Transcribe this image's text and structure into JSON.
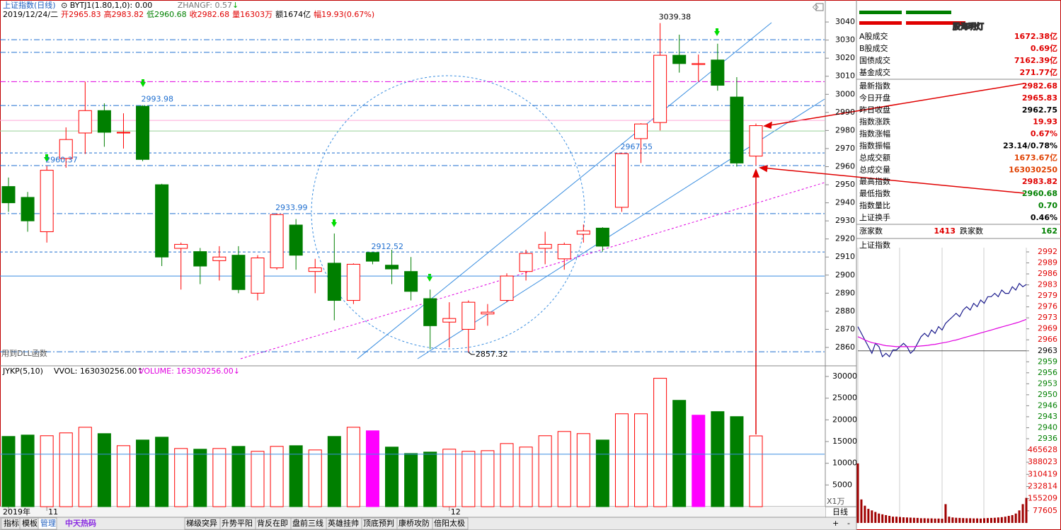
{
  "header": {
    "title": "上证指数",
    "period": "(日线)",
    "indicator": "⊙ BYTJ1(1.80,1,0)",
    "indicator_value": ": 0.00",
    "zhangf": "ZHANGF: 0.57",
    "zhangf_arrow": "↓",
    "info": [
      {
        "text": "2019/12/24/二",
        "color": "#000000"
      },
      {
        "text": "开2965.83",
        "color": "#e00000"
      },
      {
        "text": "高2983.82",
        "color": "#e00000"
      },
      {
        "text": "低2960.68",
        "color": "#008000"
      },
      {
        "text": "收2982.68",
        "color": "#e00000"
      },
      {
        "text": "量16303万",
        "color": "#e00000"
      },
      {
        "text": "额1674亿",
        "color": "#000000"
      },
      {
        "text": "幅19.93(0.67%)",
        "color": "#e00000"
      }
    ]
  },
  "chart_data": [
    {
      "type": "candlestick",
      "note": "用到DLL函数",
      "categories": [
        "2019年",
        null,
        "11",
        null,
        null,
        null,
        null,
        null,
        null,
        null,
        null,
        null,
        null,
        null,
        null,
        null,
        null,
        null,
        null,
        null,
        null,
        null,
        null,
        "12",
        null,
        null,
        null,
        null,
        null,
        null,
        null,
        null,
        null,
        null,
        null,
        null,
        null,
        null,
        null,
        null
      ],
      "open": [
        2949,
        2943,
        2924,
        2964.5,
        2978.6,
        2991,
        2978.6,
        2993.4,
        2950,
        2914.8,
        2913,
        2908,
        2911,
        2890,
        2904,
        2927.7,
        2902,
        2906.6,
        2886,
        2912.5,
        2905.5,
        2902,
        2887,
        2874,
        2870,
        2878.5,
        2886,
        2902,
        2914.8,
        2909,
        2922.6,
        2926,
        2937.5,
        2975.5,
        2984.4,
        3021.6,
        3016.5,
        3019,
        2998.5,
        2965.83
      ],
      "high": [
        2954,
        2946,
        2960.37,
        2981.7,
        3007,
        2995,
        2989.5,
        2993.98,
        2950.5,
        2918,
        2915,
        2916,
        2916,
        2911,
        2933.99,
        2931,
        2909,
        2923,
        2906.5,
        2912.52,
        2914,
        2910,
        2892,
        2885,
        2886,
        2884,
        2901,
        2914,
        2924,
        2918,
        2928,
        2926.5,
        2967.55,
        2984,
        3039.38,
        3033,
        3022,
        3028,
        3009.5,
        2983.82
      ],
      "low": [
        2935,
        2924,
        2918,
        2959.4,
        2967,
        2971,
        2970,
        2963,
        2905,
        2892,
        2895,
        2897,
        2890,
        2886,
        2903,
        2903,
        2890,
        2875,
        2884,
        2906,
        2895,
        2886,
        2859,
        2860,
        2857.32,
        2872,
        2885,
        2897,
        2906,
        2903,
        2918,
        2913,
        2935,
        2962,
        2980,
        3012,
        3007,
        3002,
        2960,
        2960.68
      ],
      "close": [
        2940,
        2930,
        2958,
        2975,
        2991,
        2979,
        2979,
        2964,
        2910,
        2917,
        2905,
        2910,
        2892,
        2909.5,
        2933.5,
        2911,
        2904,
        2886,
        2906,
        2907.7,
        2903.4,
        2891,
        2872,
        2876,
        2885,
        2879.5,
        2899.5,
        2912,
        2917,
        2917,
        2924.5,
        2916,
        2967.2,
        2983.6,
        3021.6,
        3017,
        3017,
        3005,
        2962,
        2982.68
      ],
      "up_color": "#ff0000",
      "down_color": "#007f00",
      "ylim": [
        2850.6,
        3046.3
      ],
      "yticks": [
        2860,
        2870,
        2880,
        2890,
        2900,
        2910,
        2920,
        2930,
        2940,
        2950,
        2960,
        2970,
        2980,
        2990,
        3000,
        3010,
        3020,
        3030,
        3040
      ],
      "annotations": [
        {
          "label": "3039.38",
          "value": 3039.38,
          "color": "#000000"
        },
        {
          "label": "2993.98",
          "value": 2993.98,
          "color": "#1f6fd0"
        },
        {
          "label": "2960.37",
          "value": 2960.37,
          "color": "#1f6fd0"
        },
        {
          "label": "2933.99",
          "value": 2933.99,
          "color": "#1f6fd0"
        },
        {
          "label": "2912.52",
          "value": 2912.52,
          "color": "#1f6fd0"
        },
        {
          "label": "2967.55",
          "value": 2967.55,
          "color": "#1f6fd0"
        },
        {
          "label": "2857.32",
          "value": 2857.32,
          "color": "#000000"
        }
      ],
      "reference_lines": [
        {
          "value": 3030.2,
          "color": "#1f6fd0",
          "style": "dashdot"
        },
        {
          "value": 3023.2,
          "color": "#1f6fd0",
          "style": "dashdot"
        },
        {
          "value": 3007,
          "color": "#e000e0",
          "style": "dashdot"
        },
        {
          "value": 2993.8,
          "color": "#1f6fd0",
          "style": "dashdot"
        },
        {
          "value": 2985.6,
          "color": "#ffa8d8",
          "style": "solid"
        },
        {
          "value": 2979.7,
          "color": "#98d098",
          "style": "solid"
        },
        {
          "value": 2967.6,
          "color": "#1f6fd0",
          "style": "dash"
        },
        {
          "value": 2960.6,
          "color": "#1f6fd0",
          "style": "dashdot"
        },
        {
          "value": 2934,
          "color": "#1f6fd0",
          "style": "dashdot"
        },
        {
          "value": 2912.8,
          "color": "#1f6fd0",
          "style": "dash"
        },
        {
          "value": 2899.5,
          "color": "#3a8ee0",
          "style": "solid"
        },
        {
          "value": 2857.6,
          "color": "#1f6fd0",
          "style": "dashdot"
        }
      ]
    },
    {
      "type": "bar",
      "title": "JYKP(5,10)",
      "legend": [
        {
          "text": "VVOL: 163030256.00↑",
          "color": "#000000"
        },
        {
          "text": "VOLUME: 163030256.00↓",
          "color": "#e000e0"
        }
      ],
      "values": [
        16180,
        16500,
        16340,
        17000,
        18300,
        16830,
        14050,
        15360,
        16010,
        13400,
        13240,
        13400,
        13890,
        12750,
        13890,
        14050,
        13070,
        16180,
        18300,
        17480,
        13730,
        12250,
        12580,
        13240,
        12750,
        12900,
        14540,
        13730,
        16340,
        17320,
        16830,
        15360,
        21400,
        21400,
        29580,
        24500,
        21080,
        21900,
        20750,
        16303
      ],
      "colors": [
        "#007f00",
        "#007f00",
        "#ff0000",
        "#ff0000",
        "#ff0000",
        "#007f00",
        "#ff0000",
        "#007f00",
        "#007f00",
        "#ff0000",
        "#007f00",
        "#ff0000",
        "#007f00",
        "#ff0000",
        "#ff0000",
        "#007f00",
        "#ff0000",
        "#007f00",
        "#ff0000",
        "#ff00ff",
        "#007f00",
        "#007f00",
        "#007f00",
        "#ff0000",
        "#ff0000",
        "#ff0000",
        "#ff0000",
        "#ff0000",
        "#ff0000",
        "#ff0000",
        "#ff0000",
        "#007f00",
        "#ff0000",
        "#ff0000",
        "#ff0000",
        "#007f00",
        "#ff00ff",
        "#007f00",
        "#007f00",
        "#ff0000"
      ],
      "hollow_color": "#ff0000",
      "reference_value": 12090,
      "reference_color": "#3a8ee0",
      "ylim": [
        0,
        31960
      ],
      "yticks": [
        5000,
        10000,
        15000,
        20000,
        25000,
        30000
      ],
      "unit": "X1万"
    },
    {
      "type": "line",
      "title": "上证指数",
      "baseline": 2962.75,
      "series": [
        {
          "color": "#1a1a8c",
          "values": [
            2970,
            2968,
            2966,
            2964,
            2962,
            2965,
            2964,
            2961,
            2962,
            2961,
            2963,
            2963,
            2964,
            2965,
            2964,
            2962,
            2963,
            2965,
            2967,
            2968,
            2967,
            2969,
            2968,
            2970,
            2969,
            2971,
            2972,
            2973,
            2974,
            2973,
            2975,
            2976,
            2975,
            2977,
            2976,
            2978,
            2977,
            2979,
            2979,
            2980,
            2979,
            2981,
            2980,
            2980,
            2982,
            2981,
            2983,
            2982,
            2982.68
          ]
        },
        {
          "color": "#e000e0",
          "values": [
            2967,
            2966.5,
            2966,
            2965.6,
            2965.2,
            2965,
            2964.8,
            2964.5,
            2964.3,
            2964.2,
            2964.1,
            2964,
            2964,
            2964,
            2964,
            2964,
            2964,
            2964.1,
            2964.2,
            2964.3,
            2964.4,
            2964.6,
            2964.7,
            2964.9,
            2965.1,
            2965.3,
            2965.5,
            2965.8,
            2966,
            2966.3,
            2966.6,
            2966.9,
            2967.2,
            2967.5,
            2967.8,
            2968.1,
            2968.4,
            2968.7,
            2969,
            2969.3,
            2969.6,
            2969.9,
            2970.2,
            2970.5,
            2970.8,
            2971.1,
            2971.4,
            2971.8,
            2972.2
          ]
        }
      ],
      "ylim": [
        2934.65,
        2994.15
      ],
      "yticks": [
        {
          "value": 2992.45,
          "label": "2992"
        },
        {
          "value": 2989.15,
          "label": "2989"
        },
        {
          "value": 2985.85,
          "label": "2986"
        },
        {
          "value": 2982.55,
          "label": "2983"
        },
        {
          "value": 2979.25,
          "label": "2979"
        },
        {
          "value": 2975.95,
          "label": "2976"
        },
        {
          "value": 2972.65,
          "label": "2973"
        },
        {
          "value": 2969.35,
          "label": "2969"
        },
        {
          "value": 2966.05,
          "label": "2966"
        },
        {
          "value": 2962.75,
          "label": "2963"
        },
        {
          "value": 2959.45,
          "label": "2959"
        },
        {
          "value": 2956.15,
          "label": "2956"
        },
        {
          "value": 2952.85,
          "label": "2953"
        },
        {
          "value": 2949.55,
          "label": "2950"
        },
        {
          "value": 2946.25,
          "label": "2946"
        },
        {
          "value": 2942.95,
          "label": "2943"
        },
        {
          "value": 2939.65,
          "label": "2940"
        },
        {
          "value": 2936.35,
          "label": "2936"
        }
      ],
      "volume": {
        "color": "#a00000",
        "values": [
          380000,
          150000,
          110000,
          90000,
          80000,
          70000,
          60000,
          55000,
          50000,
          45000,
          40000,
          40000,
          38000,
          36000,
          35000,
          34000,
          33000,
          32000,
          30000,
          30000,
          29000,
          29000,
          28000,
          28000,
          27000,
          120000,
          40000,
          35000,
          33000,
          32000,
          31000,
          30000,
          30000,
          29000,
          29000,
          28000,
          30000,
          31000,
          32000,
          33000,
          35000,
          37000,
          40000,
          45000,
          50000,
          60000,
          80000,
          120000,
          160000
        ],
        "ylim": [
          0,
          492750
        ],
        "yticks": [
          465628,
          388023,
          310419,
          232814,
          155209,
          77605
        ]
      }
    }
  ],
  "panel": {
    "watermark": "股海明灯",
    "rows": [
      {
        "label": "A股成交",
        "value": "1672.38亿",
        "color": "#e00000"
      },
      {
        "label": "B股成交",
        "value": "0.69亿",
        "color": "#e00000"
      },
      {
        "label": "国债成交",
        "value": "7162.39亿",
        "color": "#e00000"
      },
      {
        "label": "基金成交",
        "value": "271.77亿",
        "color": "#e00000"
      }
    ],
    "index_rows": [
      {
        "label": "最新指数",
        "value": "2982.68",
        "color": "#e00000"
      },
      {
        "label": "今日开盘",
        "value": "2965.83",
        "color": "#e00000"
      },
      {
        "label": "昨日收盘",
        "value": "2962.75",
        "color": "#000000"
      },
      {
        "label": "指数涨跌",
        "value": "19.93",
        "color": "#e00000"
      },
      {
        "label": "指数涨幅",
        "value": "0.67%",
        "color": "#e00000"
      },
      {
        "label": "指数振幅",
        "value": "23.14/0.78%",
        "color": "#000000"
      },
      {
        "label": "总成交额",
        "value": "1673.67亿",
        "color": "#e04000"
      },
      {
        "label": "总成交量",
        "value": "163030250",
        "color": "#e04000"
      },
      {
        "label": "最高指数",
        "value": "2983.82",
        "color": "#e00000"
      },
      {
        "label": "最低指数",
        "value": "2960.68",
        "color": "#008000"
      },
      {
        "label": "指数量比",
        "value": "0.70",
        "color": "#008000"
      },
      {
        "label": "上证换手",
        "value": "0.46%",
        "color": "#000000"
      }
    ],
    "up_label": "涨家数",
    "up_count": "1413",
    "down_label": "跌家数",
    "down_count": "162"
  },
  "footer": {
    "period": "日线",
    "plus": "+",
    "minus": "-",
    "logo": "中天热码",
    "tabs": [
      "指标",
      "模板",
      "管理"
    ],
    "formula_tabs": [
      "梯级突异",
      "升势平阳",
      "背反在即",
      "盘前三线",
      "英雄挂帅",
      "顶底预判",
      "康桥攻防",
      "倍阳太极"
    ]
  }
}
